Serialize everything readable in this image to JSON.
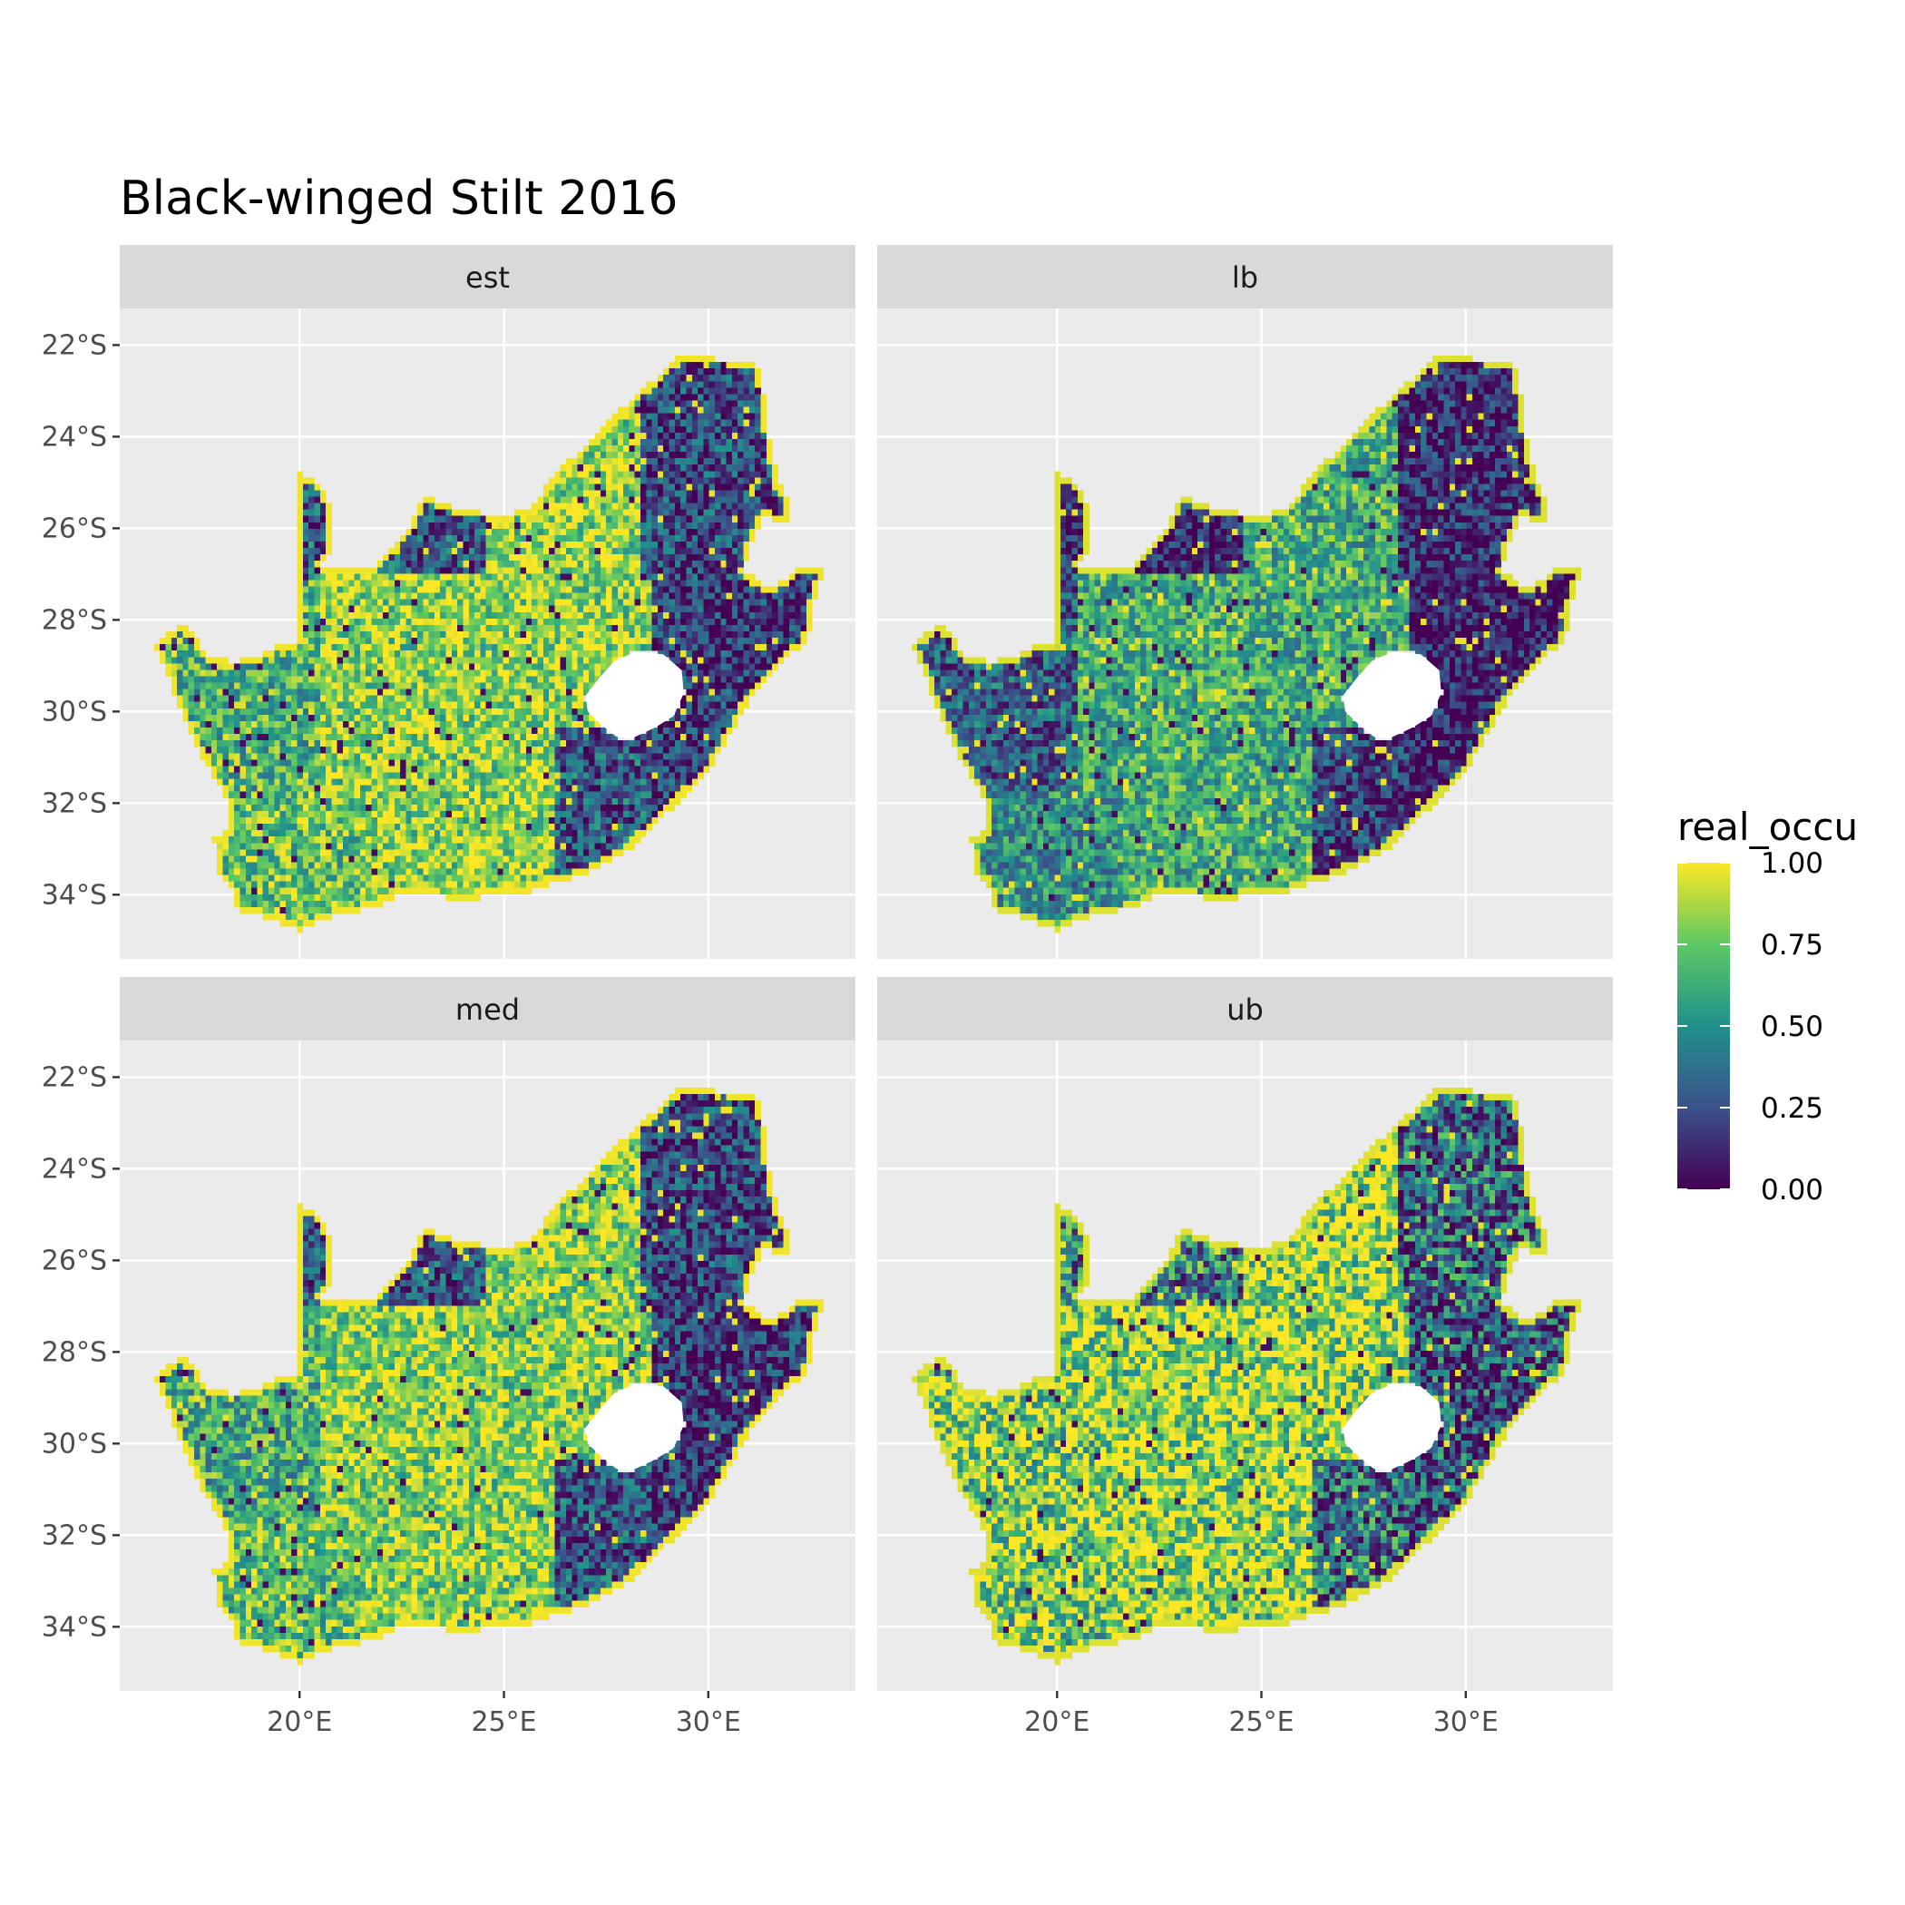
{
  "title": "Black-winged Stilt 2016",
  "colors": {
    "panel_background": "#EBEBEB",
    "strip_background": "#D9D9D9",
    "grid": "#FFFFFF",
    "lesotho_hole": "#FFFFFF",
    "viridis": [
      "#440154",
      "#3B528B",
      "#21908C",
      "#5DC863",
      "#FDE725"
    ]
  },
  "chart_data": {
    "type": "heatmap",
    "facets": [
      {
        "label": "est",
        "pattern": {
          "west": 0.66,
          "south": 0.74,
          "central": 0.82,
          "east": 0.16,
          "northeast": 0.22,
          "north_cape": 0.28,
          "coast": 0.98,
          "noise": 0.3
        }
      },
      {
        "label": "lb",
        "pattern": {
          "west": 0.3,
          "south": 0.5,
          "central": 0.62,
          "east": 0.08,
          "northeast": 0.12,
          "north_cape": 0.1,
          "coast": 0.95,
          "noise": 0.28
        }
      },
      {
        "label": "med",
        "pattern": {
          "west": 0.62,
          "south": 0.72,
          "central": 0.8,
          "east": 0.16,
          "northeast": 0.22,
          "north_cape": 0.26,
          "coast": 0.98,
          "noise": 0.3
        }
      },
      {
        "label": "ub",
        "pattern": {
          "west": 0.8,
          "south": 0.78,
          "central": 0.85,
          "east": 0.25,
          "northeast": 0.35,
          "north_cape": 0.45,
          "coast": 0.95,
          "noise": 0.42
        }
      }
    ],
    "x_axis": {
      "ticks": [
        20,
        25,
        30
      ],
      "tick_labels": [
        "20°E",
        "25°E",
        "30°E"
      ],
      "range": [
        15.6,
        33.6
      ]
    },
    "y_axis": {
      "ticks": [
        -22,
        -24,
        -26,
        -28,
        -30,
        -32,
        -34
      ],
      "tick_labels": [
        "22°S",
        "24°S",
        "26°S",
        "28°S",
        "30°S",
        "32°S",
        "34°S"
      ],
      "range": [
        -35.4,
        -21.2
      ]
    },
    "fill_variable": "real_occu",
    "colorbar": {
      "title": "real_occu",
      "range": [
        0,
        1
      ],
      "ticks": [
        0.0,
        0.25,
        0.5,
        0.75,
        1.0
      ],
      "tick_labels": [
        "0.00",
        "0.25",
        "0.50",
        "0.75",
        "1.00"
      ]
    },
    "grid": true,
    "legend_position": "right",
    "region_outline_lonlat": [
      [
        16.45,
        -28.6
      ],
      [
        16.8,
        -28.3
      ],
      [
        17.1,
        -28.1
      ],
      [
        17.45,
        -28.35
      ],
      [
        17.7,
        -28.75
      ],
      [
        18.3,
        -28.9
      ],
      [
        18.9,
        -28.85
      ],
      [
        19.5,
        -28.55
      ],
      [
        20.0,
        -28.45
      ],
      [
        20.0,
        -24.8
      ],
      [
        20.35,
        -24.9
      ],
      [
        20.8,
        -25.5
      ],
      [
        20.8,
        -26.4
      ],
      [
        20.55,
        -26.8
      ],
      [
        21.0,
        -26.85
      ],
      [
        21.8,
        -26.85
      ],
      [
        22.6,
        -26.1
      ],
      [
        23.0,
        -25.3
      ],
      [
        24.0,
        -25.6
      ],
      [
        25.1,
        -25.75
      ],
      [
        25.7,
        -25.5
      ],
      [
        26.4,
        -24.65
      ],
      [
        27.0,
        -24.2
      ],
      [
        27.75,
        -23.5
      ],
      [
        28.5,
        -22.9
      ],
      [
        29.35,
        -22.2
      ],
      [
        30.2,
        -22.3
      ],
      [
        31.1,
        -22.35
      ],
      [
        31.3,
        -22.6
      ],
      [
        31.4,
        -23.4
      ],
      [
        31.55,
        -24.45
      ],
      [
        31.95,
        -25.4
      ],
      [
        31.95,
        -25.95
      ],
      [
        31.35,
        -25.75
      ],
      [
        31.0,
        -26.4
      ],
      [
        30.9,
        -26.9
      ],
      [
        31.4,
        -27.3
      ],
      [
        31.9,
        -27.15
      ],
      [
        32.15,
        -26.85
      ],
      [
        32.85,
        -26.85
      ],
      [
        32.6,
        -27.6
      ],
      [
        32.4,
        -28.5
      ],
      [
        31.8,
        -28.9
      ],
      [
        31.1,
        -29.6
      ],
      [
        30.4,
        -30.7
      ],
      [
        30.0,
        -31.3
      ],
      [
        28.9,
        -32.3
      ],
      [
        28.0,
        -33.05
      ],
      [
        27.0,
        -33.55
      ],
      [
        26.2,
        -33.75
      ],
      [
        25.6,
        -33.95
      ],
      [
        24.9,
        -34.0
      ],
      [
        24.0,
        -34.1
      ],
      [
        23.4,
        -34.05
      ],
      [
        22.5,
        -34.0
      ],
      [
        21.9,
        -34.3
      ],
      [
        20.9,
        -34.4
      ],
      [
        20.0,
        -34.8
      ],
      [
        19.4,
        -34.6
      ],
      [
        18.8,
        -34.4
      ],
      [
        18.4,
        -34.3
      ],
      [
        18.45,
        -33.95
      ],
      [
        18.0,
        -33.6
      ],
      [
        17.9,
        -32.8
      ],
      [
        18.3,
        -32.6
      ],
      [
        18.2,
        -31.9
      ],
      [
        17.5,
        -30.8
      ],
      [
        17.0,
        -29.8
      ],
      [
        16.75,
        -29.2
      ],
      [
        16.45,
        -28.6
      ]
    ],
    "hole_outline_lonlat": [
      [
        27.0,
        -29.65
      ],
      [
        27.35,
        -29.25
      ],
      [
        27.7,
        -28.9
      ],
      [
        28.2,
        -28.7
      ],
      [
        28.9,
        -28.75
      ],
      [
        29.35,
        -29.1
      ],
      [
        29.4,
        -29.6
      ],
      [
        29.15,
        -30.1
      ],
      [
        28.7,
        -30.35
      ],
      [
        28.1,
        -30.6
      ],
      [
        27.75,
        -30.55
      ],
      [
        27.4,
        -30.3
      ],
      [
        27.05,
        -30.0
      ],
      [
        27.0,
        -29.65
      ]
    ]
  }
}
